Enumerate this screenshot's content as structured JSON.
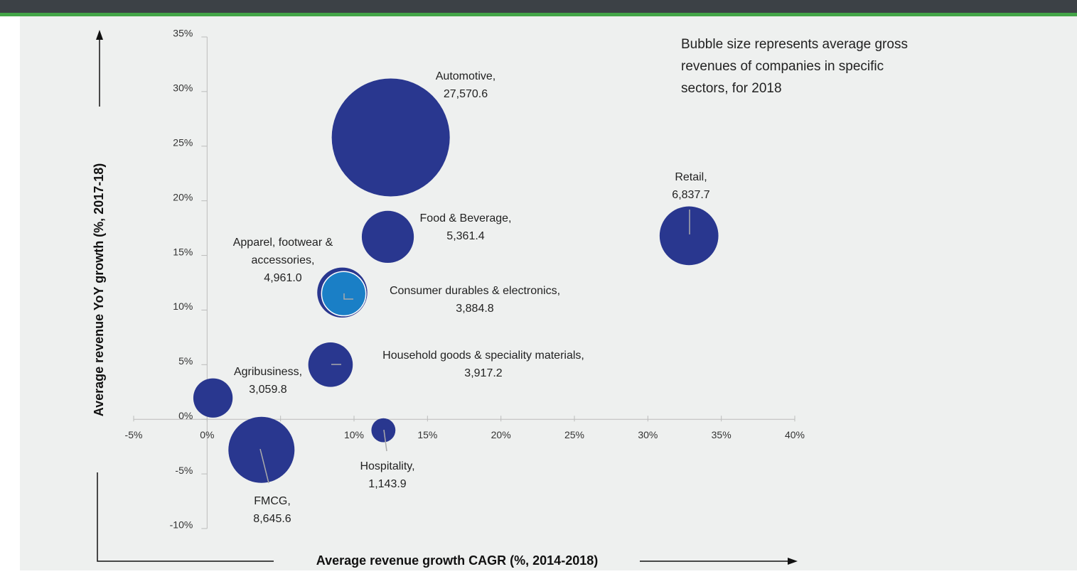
{
  "chart_data": {
    "type": "bubble",
    "annotation": "Bubble size represents average gross revenues of companies in specific sectors, for 2018",
    "x_label": "Average revenue growth CAGR (%, 2014-2018)",
    "y_label": "Average revenue YoY growth (%, 2017-18)",
    "categories": [
      "Automotive,",
      "Food & Beverage,",
      "Retail,",
      "Apparel, footwear & accessories,",
      "Consumer durables & electronics,",
      "Household goods & speciality materials,",
      "Agribusiness,",
      "FMCG,",
      "Hospitality,"
    ],
    "x": [
      12.5,
      12.3,
      32.8,
      9.2,
      9.3,
      8.4,
      0.4,
      3.7,
      12.0
    ],
    "y": [
      25.8,
      16.7,
      16.8,
      11.6,
      11.5,
      5.0,
      1.95,
      -2.8,
      -1.0
    ],
    "sizes": [
      27570.6,
      5361.4,
      6837.7,
      4961.0,
      3884.8,
      3917.2,
      3059.8,
      8645.6,
      1143.9
    ],
    "value_labels": [
      "27,570.6",
      "5,361.4",
      "6,837.7",
      "4,961.0",
      "3,884.8",
      "3,917.2",
      "3,059.8",
      "8,645.6",
      "1,143.9"
    ],
    "colors": [
      "#29378f",
      "#29378f",
      "#29378f",
      "#29378f",
      "#1a7fc6",
      "#29378f",
      "#29378f",
      "#29378f",
      "#29378f"
    ],
    "xlim": [
      -5,
      40
    ],
    "ylim": [
      -10,
      35
    ],
    "xticks": [
      {
        "value": -5,
        "label": "-5%"
      },
      {
        "value": 0,
        "label": "0%"
      },
      {
        "value": 5,
        "label": "5%"
      },
      {
        "value": 10,
        "label": "10%"
      },
      {
        "value": 15,
        "label": "15%"
      },
      {
        "value": 20,
        "label": "20%"
      },
      {
        "value": 25,
        "label": "25%"
      },
      {
        "value": 30,
        "label": "30%"
      },
      {
        "value": 35,
        "label": "35%"
      },
      {
        "value": 40,
        "label": "40%"
      }
    ],
    "yticks": [
      {
        "value": -10,
        "label": "-10%"
      },
      {
        "value": -5,
        "label": "-5%"
      },
      {
        "value": 0,
        "label": "0%"
      },
      {
        "value": 5,
        "label": "5%"
      },
      {
        "value": 10,
        "label": "10%"
      },
      {
        "value": 15,
        "label": "15%"
      },
      {
        "value": 20,
        "label": "20%"
      },
      {
        "value": 25,
        "label": "25%"
      },
      {
        "value": 30,
        "label": "30%"
      },
      {
        "value": 35,
        "label": "35%"
      }
    ]
  }
}
